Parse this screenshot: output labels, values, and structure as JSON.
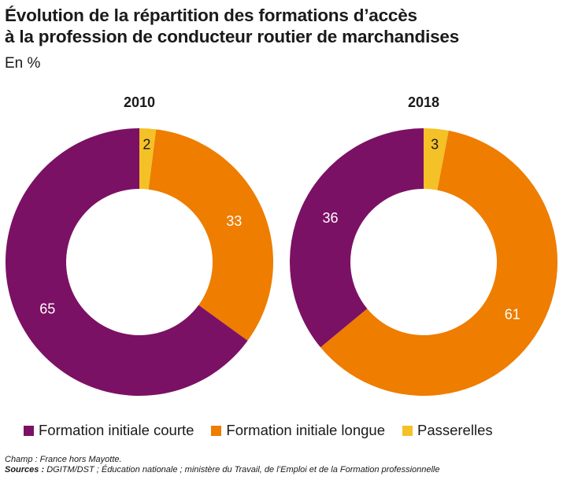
{
  "title_line1": "Évolution de la répartition des formations d’accès",
  "title_line2": "à la profession de conducteur routier de marchandises",
  "subtitle": "En %",
  "colors": {
    "formation_initiale_courte": "#7b1164",
    "formation_initiale_longue": "#ee7d00",
    "passerelles": "#f4c126"
  },
  "legend": [
    {
      "label": "Formation initiale courte",
      "color": "#7b1164"
    },
    {
      "label": "Formation initiale longue",
      "color": "#ee7d00"
    },
    {
      "label": "Passerelles",
      "color": "#f4c126"
    }
  ],
  "chart_data": [
    {
      "type": "pie",
      "title": "2010",
      "categories": [
        "Passerelles",
        "Formation initiale longue",
        "Formation initiale courte"
      ],
      "values": [
        2,
        33,
        65
      ],
      "colors": [
        "#f4c126",
        "#ee7d00",
        "#7b1164"
      ],
      "label_colors": [
        "#1a1a1a",
        "#ffffff",
        "#ffffff"
      ]
    },
    {
      "type": "pie",
      "title": "2018",
      "categories": [
        "Passerelles",
        "Formation initiale longue",
        "Formation initiale courte"
      ],
      "values": [
        3,
        61,
        36
      ],
      "colors": [
        "#f4c126",
        "#ee7d00",
        "#7b1164"
      ],
      "label_colors": [
        "#1a1a1a",
        "#ffffff",
        "#ffffff"
      ]
    }
  ],
  "footnote": {
    "champ_label": "Champ : ",
    "champ_text": "France hors Mayotte.",
    "sources_label": "Sources : ",
    "sources_text": "DGITM/DST ; Éducation nationale ; ministère du Travail, de l’Emploi et de la Formation professionnelle"
  }
}
